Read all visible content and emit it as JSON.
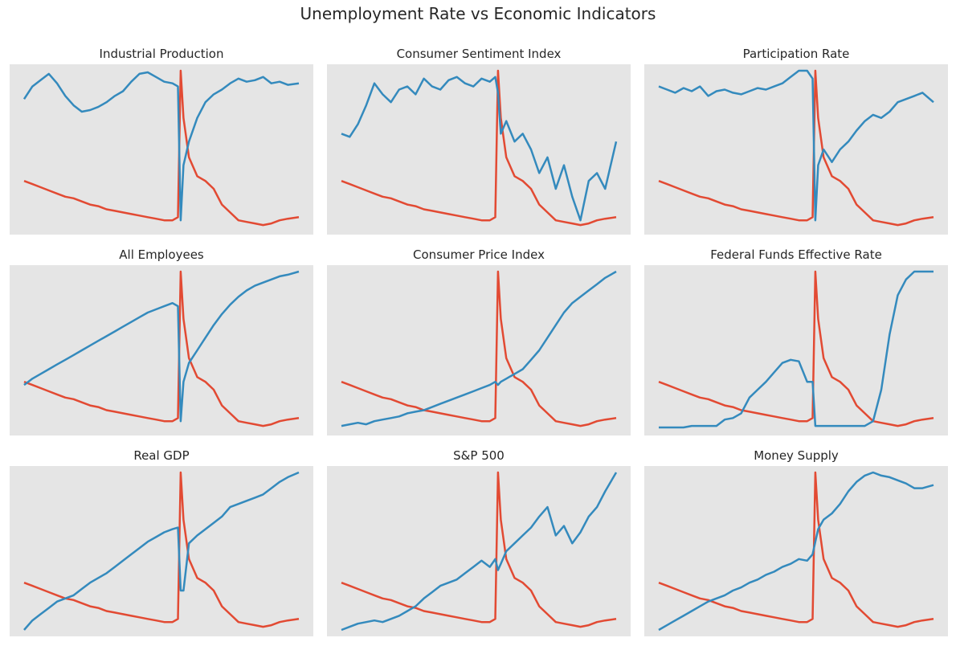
{
  "figure": {
    "title": "Unemployment Rate vs Economic Indicators",
    "colors": {
      "background": "#e5e5e5",
      "unemployment": "#e24a33",
      "indicator": "#348abd"
    }
  },
  "chart_data": [
    {
      "type": "line",
      "title": "Industrial Production",
      "grid": false,
      "x": [
        0,
        0.03,
        0.06,
        0.09,
        0.12,
        0.15,
        0.18,
        0.21,
        0.24,
        0.27,
        0.3,
        0.33,
        0.36,
        0.39,
        0.42,
        0.45,
        0.48,
        0.51,
        0.54,
        0.56,
        0.57,
        0.58,
        0.6,
        0.63,
        0.66,
        0.69,
        0.72,
        0.75,
        0.78,
        0.81,
        0.84,
        0.87,
        0.9,
        0.93,
        0.96,
        1.0
      ],
      "series": [
        {
          "values": [
            0.3,
            0.28,
            0.26,
            0.24,
            0.22,
            0.2,
            0.19,
            0.17,
            0.15,
            0.14,
            0.12,
            0.11,
            0.1,
            0.09,
            0.08,
            0.07,
            0.06,
            0.05,
            0.05,
            0.07,
            1.0,
            0.7,
            0.45,
            0.33,
            0.3,
            0.25,
            0.15,
            0.1,
            0.05,
            0.04,
            0.03,
            0.02,
            0.03,
            0.05,
            0.06,
            0.07
          ]
        },
        {
          "values": [
            0.82,
            0.9,
            0.94,
            0.98,
            0.92,
            0.84,
            0.78,
            0.74,
            0.75,
            0.77,
            0.8,
            0.84,
            0.87,
            0.93,
            0.98,
            0.99,
            0.96,
            0.93,
            0.92,
            0.9,
            0.05,
            0.4,
            0.55,
            0.7,
            0.8,
            0.85,
            0.88,
            0.92,
            0.95,
            0.93,
            0.94,
            0.96,
            0.92,
            0.93,
            0.91,
            0.92
          ]
        }
      ]
    },
    {
      "type": "line",
      "title": "Consumer Sentiment Index",
      "grid": false,
      "x": [
        0,
        0.03,
        0.06,
        0.09,
        0.12,
        0.15,
        0.18,
        0.21,
        0.24,
        0.27,
        0.3,
        0.33,
        0.36,
        0.39,
        0.42,
        0.45,
        0.48,
        0.51,
        0.54,
        0.56,
        0.57,
        0.58,
        0.6,
        0.63,
        0.66,
        0.69,
        0.72,
        0.75,
        0.78,
        0.81,
        0.84,
        0.87,
        0.9,
        0.93,
        0.96,
        1.0
      ],
      "series": [
        {
          "values": [
            0.3,
            0.28,
            0.26,
            0.24,
            0.22,
            0.2,
            0.19,
            0.17,
            0.15,
            0.14,
            0.12,
            0.11,
            0.1,
            0.09,
            0.08,
            0.07,
            0.06,
            0.05,
            0.05,
            0.07,
            1.0,
            0.7,
            0.45,
            0.33,
            0.3,
            0.25,
            0.15,
            0.1,
            0.05,
            0.04,
            0.03,
            0.02,
            0.03,
            0.05,
            0.06,
            0.07
          ]
        },
        {
          "values": [
            0.6,
            0.58,
            0.66,
            0.78,
            0.92,
            0.85,
            0.8,
            0.88,
            0.9,
            0.85,
            0.95,
            0.9,
            0.88,
            0.94,
            0.96,
            0.92,
            0.9,
            0.95,
            0.93,
            0.96,
            0.86,
            0.6,
            0.68,
            0.55,
            0.6,
            0.5,
            0.35,
            0.45,
            0.25,
            0.4,
            0.2,
            0.05,
            0.3,
            0.35,
            0.25,
            0.55
          ]
        }
      ]
    },
    {
      "type": "line",
      "title": "Participation Rate",
      "grid": false,
      "x": [
        0,
        0.03,
        0.06,
        0.09,
        0.12,
        0.15,
        0.18,
        0.21,
        0.24,
        0.27,
        0.3,
        0.33,
        0.36,
        0.39,
        0.42,
        0.45,
        0.48,
        0.51,
        0.54,
        0.56,
        0.57,
        0.58,
        0.6,
        0.63,
        0.66,
        0.69,
        0.72,
        0.75,
        0.78,
        0.81,
        0.84,
        0.87,
        0.9,
        0.93,
        0.96,
        1.0
      ],
      "series": [
        {
          "values": [
            0.3,
            0.28,
            0.26,
            0.24,
            0.22,
            0.2,
            0.19,
            0.17,
            0.15,
            0.14,
            0.12,
            0.11,
            0.1,
            0.09,
            0.08,
            0.07,
            0.06,
            0.05,
            0.05,
            0.07,
            1.0,
            0.7,
            0.45,
            0.33,
            0.3,
            0.25,
            0.15,
            0.1,
            0.05,
            0.04,
            0.03,
            0.02,
            0.03,
            0.05,
            0.06,
            0.07
          ]
        },
        {
          "values": [
            0.9,
            0.88,
            0.86,
            0.89,
            0.87,
            0.9,
            0.84,
            0.87,
            0.88,
            0.86,
            0.85,
            0.87,
            0.89,
            0.88,
            0.9,
            0.92,
            0.96,
            1.0,
            1.0,
            0.95,
            0.05,
            0.4,
            0.5,
            0.42,
            0.5,
            0.55,
            0.62,
            0.68,
            0.72,
            0.7,
            0.74,
            0.8,
            0.82,
            0.84,
            0.86,
            0.8
          ]
        }
      ]
    },
    {
      "type": "line",
      "title": "All Employees",
      "grid": false,
      "x": [
        0,
        0.03,
        0.06,
        0.09,
        0.12,
        0.15,
        0.18,
        0.21,
        0.24,
        0.27,
        0.3,
        0.33,
        0.36,
        0.39,
        0.42,
        0.45,
        0.48,
        0.51,
        0.54,
        0.56,
        0.57,
        0.58,
        0.6,
        0.63,
        0.66,
        0.69,
        0.72,
        0.75,
        0.78,
        0.81,
        0.84,
        0.87,
        0.9,
        0.93,
        0.96,
        1.0
      ],
      "series": [
        {
          "values": [
            0.3,
            0.28,
            0.26,
            0.24,
            0.22,
            0.2,
            0.19,
            0.17,
            0.15,
            0.14,
            0.12,
            0.11,
            0.1,
            0.09,
            0.08,
            0.07,
            0.06,
            0.05,
            0.05,
            0.07,
            1.0,
            0.7,
            0.45,
            0.33,
            0.3,
            0.25,
            0.15,
            0.1,
            0.05,
            0.04,
            0.03,
            0.02,
            0.03,
            0.05,
            0.06,
            0.07
          ]
        },
        {
          "values": [
            0.28,
            0.32,
            0.35,
            0.38,
            0.41,
            0.44,
            0.47,
            0.5,
            0.53,
            0.56,
            0.59,
            0.62,
            0.65,
            0.68,
            0.71,
            0.74,
            0.76,
            0.78,
            0.8,
            0.78,
            0.05,
            0.3,
            0.42,
            0.5,
            0.58,
            0.66,
            0.73,
            0.79,
            0.84,
            0.88,
            0.91,
            0.93,
            0.95,
            0.97,
            0.98,
            1.0
          ]
        }
      ]
    },
    {
      "type": "line",
      "title": "Consumer Price Index",
      "grid": false,
      "x": [
        0,
        0.03,
        0.06,
        0.09,
        0.12,
        0.15,
        0.18,
        0.21,
        0.24,
        0.27,
        0.3,
        0.33,
        0.36,
        0.39,
        0.42,
        0.45,
        0.48,
        0.51,
        0.54,
        0.56,
        0.57,
        0.58,
        0.6,
        0.63,
        0.66,
        0.69,
        0.72,
        0.75,
        0.78,
        0.81,
        0.84,
        0.87,
        0.9,
        0.93,
        0.96,
        1.0
      ],
      "series": [
        {
          "values": [
            0.3,
            0.28,
            0.26,
            0.24,
            0.22,
            0.2,
            0.19,
            0.17,
            0.15,
            0.14,
            0.12,
            0.11,
            0.1,
            0.09,
            0.08,
            0.07,
            0.06,
            0.05,
            0.05,
            0.07,
            1.0,
            0.7,
            0.45,
            0.33,
            0.3,
            0.25,
            0.15,
            0.1,
            0.05,
            0.04,
            0.03,
            0.02,
            0.03,
            0.05,
            0.06,
            0.07
          ]
        },
        {
          "values": [
            0.02,
            0.03,
            0.04,
            0.03,
            0.05,
            0.06,
            0.07,
            0.08,
            0.1,
            0.11,
            0.12,
            0.14,
            0.16,
            0.18,
            0.2,
            0.22,
            0.24,
            0.26,
            0.28,
            0.3,
            0.28,
            0.3,
            0.32,
            0.35,
            0.38,
            0.44,
            0.5,
            0.58,
            0.66,
            0.74,
            0.8,
            0.84,
            0.88,
            0.92,
            0.96,
            1.0
          ]
        }
      ]
    },
    {
      "type": "line",
      "title": "Federal Funds Effective Rate",
      "grid": false,
      "x": [
        0,
        0.03,
        0.06,
        0.09,
        0.12,
        0.15,
        0.18,
        0.21,
        0.24,
        0.27,
        0.3,
        0.33,
        0.36,
        0.39,
        0.42,
        0.45,
        0.48,
        0.51,
        0.54,
        0.56,
        0.57,
        0.58,
        0.6,
        0.63,
        0.66,
        0.69,
        0.72,
        0.75,
        0.78,
        0.81,
        0.84,
        0.87,
        0.9,
        0.93,
        0.96,
        1.0
      ],
      "series": [
        {
          "values": [
            0.3,
            0.28,
            0.26,
            0.24,
            0.22,
            0.2,
            0.19,
            0.17,
            0.15,
            0.14,
            0.12,
            0.11,
            0.1,
            0.09,
            0.08,
            0.07,
            0.06,
            0.05,
            0.05,
            0.07,
            1.0,
            0.7,
            0.45,
            0.33,
            0.3,
            0.25,
            0.15,
            0.1,
            0.05,
            0.04,
            0.03,
            0.02,
            0.03,
            0.05,
            0.06,
            0.07
          ]
        },
        {
          "values": [
            0.01,
            0.01,
            0.01,
            0.01,
            0.02,
            0.02,
            0.02,
            0.02,
            0.06,
            0.07,
            0.1,
            0.2,
            0.25,
            0.3,
            0.36,
            0.42,
            0.44,
            0.43,
            0.3,
            0.3,
            0.02,
            0.02,
            0.02,
            0.02,
            0.02,
            0.02,
            0.02,
            0.02,
            0.05,
            0.25,
            0.6,
            0.85,
            0.95,
            1.0,
            1.0,
            1.0
          ]
        }
      ]
    },
    {
      "type": "line",
      "title": "Real GDP",
      "grid": false,
      "x": [
        0,
        0.03,
        0.06,
        0.09,
        0.12,
        0.15,
        0.18,
        0.21,
        0.24,
        0.27,
        0.3,
        0.33,
        0.36,
        0.39,
        0.42,
        0.45,
        0.48,
        0.51,
        0.54,
        0.56,
        0.57,
        0.58,
        0.6,
        0.63,
        0.66,
        0.69,
        0.72,
        0.75,
        0.78,
        0.81,
        0.84,
        0.87,
        0.9,
        0.93,
        0.96,
        1.0
      ],
      "series": [
        {
          "values": [
            0.3,
            0.28,
            0.26,
            0.24,
            0.22,
            0.2,
            0.19,
            0.17,
            0.15,
            0.14,
            0.12,
            0.11,
            0.1,
            0.09,
            0.08,
            0.07,
            0.06,
            0.05,
            0.05,
            0.07,
            1.0,
            0.7,
            0.45,
            0.33,
            0.3,
            0.25,
            0.15,
            0.1,
            0.05,
            0.04,
            0.03,
            0.02,
            0.03,
            0.05,
            0.06,
            0.07
          ]
        },
        {
          "values": [
            0.0,
            0.06,
            0.1,
            0.14,
            0.18,
            0.2,
            0.22,
            0.26,
            0.3,
            0.33,
            0.36,
            0.4,
            0.44,
            0.48,
            0.52,
            0.56,
            0.59,
            0.62,
            0.64,
            0.65,
            0.25,
            0.25,
            0.55,
            0.6,
            0.64,
            0.68,
            0.72,
            0.78,
            0.8,
            0.82,
            0.84,
            0.86,
            0.9,
            0.94,
            0.97,
            1.0
          ]
        }
      ]
    },
    {
      "type": "line",
      "title": "S&P 500",
      "grid": false,
      "x": [
        0,
        0.03,
        0.06,
        0.09,
        0.12,
        0.15,
        0.18,
        0.21,
        0.24,
        0.27,
        0.3,
        0.33,
        0.36,
        0.39,
        0.42,
        0.45,
        0.48,
        0.51,
        0.54,
        0.56,
        0.57,
        0.58,
        0.6,
        0.63,
        0.66,
        0.69,
        0.72,
        0.75,
        0.78,
        0.81,
        0.84,
        0.87,
        0.9,
        0.93,
        0.96,
        1.0
      ],
      "series": [
        {
          "values": [
            0.3,
            0.28,
            0.26,
            0.24,
            0.22,
            0.2,
            0.19,
            0.17,
            0.15,
            0.14,
            0.12,
            0.11,
            0.1,
            0.09,
            0.08,
            0.07,
            0.06,
            0.05,
            0.05,
            0.07,
            1.0,
            0.7,
            0.45,
            0.33,
            0.3,
            0.25,
            0.15,
            0.1,
            0.05,
            0.04,
            0.03,
            0.02,
            0.03,
            0.05,
            0.06,
            0.07
          ]
        },
        {
          "values": [
            0.0,
            0.02,
            0.04,
            0.05,
            0.06,
            0.05,
            0.07,
            0.09,
            0.12,
            0.15,
            0.2,
            0.24,
            0.28,
            0.3,
            0.32,
            0.36,
            0.4,
            0.44,
            0.4,
            0.45,
            0.38,
            0.42,
            0.5,
            0.55,
            0.6,
            0.65,
            0.72,
            0.78,
            0.6,
            0.66,
            0.55,
            0.62,
            0.72,
            0.78,
            0.88,
            1.0
          ]
        }
      ]
    },
    {
      "type": "line",
      "title": "Money Supply",
      "grid": false,
      "x": [
        0,
        0.03,
        0.06,
        0.09,
        0.12,
        0.15,
        0.18,
        0.21,
        0.24,
        0.27,
        0.3,
        0.33,
        0.36,
        0.39,
        0.42,
        0.45,
        0.48,
        0.51,
        0.54,
        0.56,
        0.57,
        0.58,
        0.6,
        0.63,
        0.66,
        0.69,
        0.72,
        0.75,
        0.78,
        0.81,
        0.84,
        0.87,
        0.9,
        0.93,
        0.96,
        1.0
      ],
      "series": [
        {
          "values": [
            0.3,
            0.28,
            0.26,
            0.24,
            0.22,
            0.2,
            0.19,
            0.17,
            0.15,
            0.14,
            0.12,
            0.11,
            0.1,
            0.09,
            0.08,
            0.07,
            0.06,
            0.05,
            0.05,
            0.07,
            1.0,
            0.7,
            0.45,
            0.33,
            0.3,
            0.25,
            0.15,
            0.1,
            0.05,
            0.04,
            0.03,
            0.02,
            0.03,
            0.05,
            0.06,
            0.07
          ]
        },
        {
          "values": [
            0.0,
            0.03,
            0.06,
            0.09,
            0.12,
            0.15,
            0.18,
            0.2,
            0.22,
            0.25,
            0.27,
            0.3,
            0.32,
            0.35,
            0.37,
            0.4,
            0.42,
            0.45,
            0.44,
            0.48,
            0.56,
            0.64,
            0.7,
            0.74,
            0.8,
            0.88,
            0.94,
            0.98,
            1.0,
            0.98,
            0.97,
            0.95,
            0.93,
            0.9,
            0.9,
            0.92
          ]
        }
      ]
    }
  ]
}
